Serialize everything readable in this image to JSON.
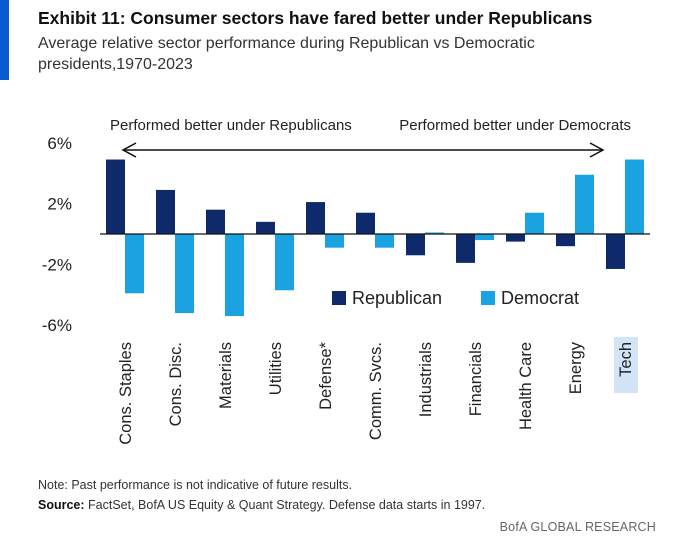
{
  "header": {
    "title": "Exhibit 11: Consumer sectors have fared better under Republicans",
    "subtitle": "Average relative sector performance during Republican vs Democratic presidents,1970-2023"
  },
  "footer": {
    "note": "Note: Past performance is not indicative of future results.",
    "source_label": "Source:",
    "source_text": " FactSet, BofA US Equity & Quant Strategy. Defense data starts in 1997.",
    "brand": "BofA GLOBAL RESEARCH"
  },
  "colors": {
    "republican": "#0f2a6b",
    "democrat": "#1aa3e0",
    "accent": "#0a5bd1",
    "highlight": "#d4e4f7"
  },
  "chart_data": {
    "type": "bar",
    "categories": [
      "Cons. Staples",
      "Cons. Disc.",
      "Materials",
      "Utilities",
      "Defense*",
      "Comm. Svcs.",
      "Industrials",
      "Financials",
      "Health Care",
      "Energy",
      "Tech"
    ],
    "highlighted_category": "Tech",
    "series": [
      {
        "name": "Republican",
        "values": [
          4.9,
          2.9,
          1.6,
          0.8,
          2.1,
          1.4,
          -1.4,
          -1.9,
          -0.5,
          -0.8,
          -2.3
        ]
      },
      {
        "name": "Democrat",
        "values": [
          -3.9,
          -5.2,
          -5.4,
          -3.7,
          -0.9,
          -0.9,
          0.1,
          -0.4,
          1.4,
          3.9,
          4.9
        ]
      }
    ],
    "yticks": [
      "6%",
      "2%",
      "-2%",
      "-6%"
    ],
    "ylim": [
      -6,
      6
    ],
    "annotations": {
      "left": "Performed better under Republicans",
      "right": "Performed better under Democrats"
    },
    "legend": "center-right",
    "grid": false
  }
}
